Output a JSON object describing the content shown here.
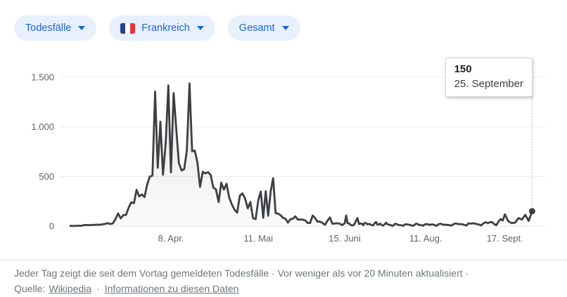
{
  "filters": {
    "metric": {
      "label": "Todesfälle"
    },
    "region": {
      "label": "Frankreich",
      "flag": "france-flag-icon"
    },
    "scope": {
      "label": "Gesamt"
    }
  },
  "tooltip": {
    "value": "150",
    "date": "25. September"
  },
  "chart_data": {
    "type": "area",
    "title": "Todesfälle Frankreich Gesamt",
    "series_name": "Todesfälle",
    "region": "Frankreich",
    "ylim": [
      0,
      1500
    ],
    "grid": true,
    "y_ticks": [
      {
        "label": "0",
        "value": 0
      },
      {
        "label": "500",
        "value": 500
      },
      {
        "label": "1.000",
        "value": 1000
      },
      {
        "label": "1.500",
        "value": 1500
      }
    ],
    "x_ticks": [
      {
        "label": "8. Apr.",
        "index": 38
      },
      {
        "label": "11. Mai",
        "index": 71
      },
      {
        "label": "15. Juni",
        "index": 106
      },
      {
        "label": "11. Aug.",
        "index": 163
      },
      {
        "label": "17. Sept.",
        "index": 200
      }
    ],
    "anchors": [
      [
        0,
        0.022
      ],
      [
        38,
        0.229
      ],
      [
        71,
        0.409
      ],
      [
        106,
        0.587
      ],
      [
        163,
        0.754
      ],
      [
        200,
        0.917
      ],
      [
        208,
        0.973
      ]
    ],
    "values": [
      2,
      1,
      3,
      4,
      3,
      9,
      11,
      9,
      13,
      11,
      15,
      13,
      18,
      21,
      29,
      21,
      27,
      69,
      128,
      78,
      112,
      112,
      186,
      240,
      231,
      365,
      299,
      319,
      292,
      418,
      499,
      509,
      1355,
      588,
      1053,
      518,
      833,
      1417,
      541,
      1341,
      987,
      635,
      561,
      574,
      762,
      1438,
      753,
      761,
      642,
      395,
      547,
      531,
      544,
      516,
      389,
      369,
      242,
      437,
      367,
      427,
      289,
      218,
      166,
      135,
      306,
      330,
      278,
      178,
      243,
      80,
      70,
      263,
      348,
      83,
      351,
      104,
      351,
      483,
      131,
      125,
      110,
      83,
      74,
      35,
      70,
      73,
      98,
      66,
      66,
      65,
      57,
      31,
      31,
      107,
      81,
      44,
      46,
      31,
      13,
      54,
      87,
      23,
      27,
      28,
      24,
      9,
      29,
      107,
      28,
      28,
      14,
      7,
      7,
      23,
      57,
      81,
      21,
      26,
      25,
      8,
      31,
      30,
      18,
      21,
      18,
      10,
      7,
      28,
      42,
      14,
      17,
      25,
      9,
      5,
      17,
      35,
      19,
      15,
      12,
      5,
      3,
      19,
      24,
      16,
      11,
      9,
      8,
      3,
      13,
      19,
      17,
      14,
      12,
      6,
      3,
      12,
      23,
      24,
      12,
      13,
      9,
      3,
      14,
      20,
      18,
      13,
      18,
      12,
      2,
      19,
      24,
      14,
      15,
      12,
      10,
      5,
      20,
      27,
      21,
      20,
      19,
      12,
      6,
      28,
      25,
      28,
      25,
      20,
      15,
      8,
      29,
      39,
      30,
      38,
      40,
      19,
      9,
      45,
      70,
      56,
      118,
      48,
      30,
      35,
      81,
      66,
      113,
      52,
      150
    ],
    "highlight": {
      "index": 208,
      "value": 150,
      "value_label": "150",
      "date_label": "25. September"
    },
    "colors": {
      "line": "#3c4043",
      "grid": "#ebebeb",
      "axis_text": "#5f6368",
      "tracker": "#b6babf"
    }
  },
  "footer": {
    "line1": "Jeder Tag zeigt die seit dem Vortag gemeldeten Todesfälle · Vor weniger als vor 20 Minuten aktualisiert ·",
    "source_prefix": "Quelle:",
    "source_link": "Wikipedia",
    "sep": "·",
    "info_link": "Informationen zu diesen Daten"
  },
  "colors": {
    "pill_bg": "#e8f0fe",
    "pill_text": "#1967d2",
    "accent": "#1967d2"
  }
}
